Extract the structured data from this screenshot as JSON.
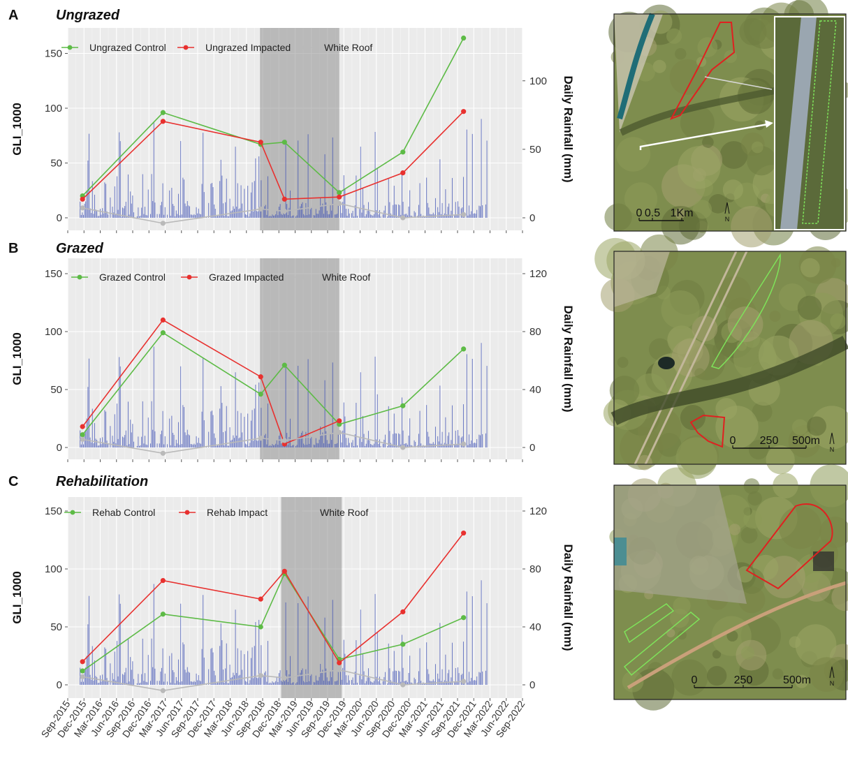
{
  "x_tick_labels": [
    "Sep-2015",
    "Dec-2015",
    "Mar-2016",
    "Jun-2016",
    "Sep-2016",
    "Dec-2016",
    "Mar-2017",
    "Jun-2017",
    "Sep-2017",
    "Dec-2017",
    "Mar-2018",
    "Jun-2018",
    "Sep-2018",
    "Dec-2018",
    "Mar-2019",
    "Jun-2019",
    "Sep-2019",
    "Dec-2019",
    "Mar-2020",
    "Jun-2020",
    "Sep-2020",
    "Dec-2020",
    "Mar-2021",
    "Jun-2021",
    "Sep-2021",
    "Dec-2021",
    "Mar-2022",
    "Jun-2022",
    "Sep-2022"
  ],
  "maps": [
    {
      "scale_labels": [
        "0",
        "0.5",
        "1Km"
      ],
      "north": "N"
    },
    {
      "scale_labels": [
        "0",
        "250",
        "500m"
      ],
      "north": "N"
    },
    {
      "scale_labels": [
        "0",
        "250",
        "500m"
      ],
      "north": "N"
    }
  ],
  "chart_data": [
    {
      "type": "line",
      "panel": "A",
      "title": "Ungrazed",
      "ylabel": "GLI_1000",
      "y2label": "Daily Rainfall (mm)",
      "ylim": [
        -5,
        165
      ],
      "yticks": [
        0,
        50,
        100,
        150
      ],
      "y2ticks": [
        0,
        50,
        100
      ],
      "y2_per_y": 0.8,
      "shaded": [
        "2018-09-01",
        "2019-12-01"
      ],
      "series": [
        {
          "name": "Ungrazed Control",
          "color": "#5dbb46",
          "x": [
            "2015-11-15",
            "2017-02-20",
            "2018-09-05",
            "2019-01-20",
            "2019-12-01",
            "2020-12-01",
            "2021-11-15"
          ],
          "y": [
            20,
            96,
            67,
            69,
            23,
            60,
            164
          ]
        },
        {
          "name": "Ungrazed Impacted",
          "color": "#e8312f",
          "x": [
            "2015-11-15",
            "2017-02-20",
            "2018-09-05",
            "2019-01-20",
            "2019-12-01",
            "2020-12-01",
            "2021-11-15"
          ],
          "y": [
            17,
            88,
            69,
            17,
            19,
            41,
            97
          ]
        },
        {
          "name": "White Roof",
          "color": "#b9b9b9",
          "x": [
            "2015-11-15",
            "2017-02-20",
            "2018-09-05",
            "2019-01-20",
            "2019-12-01",
            "2020-12-01",
            "2021-11-15"
          ],
          "y": [
            9,
            -5,
            8,
            6,
            13,
            0,
            3
          ]
        }
      ]
    },
    {
      "type": "line",
      "panel": "B",
      "title": "Grazed",
      "ylabel": "GLI_1000",
      "y2label": "Daily Rainfall (mm)",
      "ylim": [
        -5,
        155
      ],
      "yticks": [
        0,
        50,
        100,
        150
      ],
      "y2ticks": [
        0,
        40,
        80,
        120
      ],
      "y2_per_y": 0.8,
      "shaded": [
        "2018-09-01",
        "2019-12-01"
      ],
      "series": [
        {
          "name": "Grazed Control",
          "color": "#5dbb46",
          "x": [
            "2015-11-15",
            "2017-02-20",
            "2018-09-05",
            "2019-01-20",
            "2019-12-01",
            "2020-12-01",
            "2021-11-15"
          ],
          "y": [
            11,
            99,
            46,
            71,
            20,
            36,
            85
          ]
        },
        {
          "name": "Grazed Impacted",
          "color": "#e8312f",
          "x": [
            "2015-11-15",
            "2017-02-20",
            "2018-09-05",
            "2019-01-20",
            "2019-12-01"
          ],
          "y": [
            18,
            110,
            61,
            3,
            23
          ]
        },
        {
          "name": "White Roof",
          "color": "#b9b9b9",
          "x": [
            "2015-11-15",
            "2017-02-20",
            "2018-09-05",
            "2019-01-20",
            "2019-12-01",
            "2020-12-01",
            "2021-11-15"
          ],
          "y": [
            7,
            -5,
            8,
            6,
            13,
            0,
            3
          ]
        }
      ]
    },
    {
      "type": "line",
      "panel": "C",
      "title": "Rehabilitation",
      "ylabel": "GLI_1000",
      "y2label": "Daily Rainfall (mm)",
      "ylim": [
        -5,
        155
      ],
      "yticks": [
        0,
        50,
        100,
        150
      ],
      "y2ticks": [
        0,
        40,
        80,
        120
      ],
      "y2_per_y": 0.8,
      "shaded": [
        "2019-01-01",
        "2019-12-15"
      ],
      "series": [
        {
          "name": "Rehab Control",
          "color": "#5dbb46",
          "x": [
            "2015-11-15",
            "2017-02-20",
            "2018-09-05",
            "2019-01-20",
            "2019-12-01",
            "2020-12-01",
            "2021-11-15"
          ],
          "y": [
            12,
            61,
            50,
            96,
            22,
            35,
            58
          ]
        },
        {
          "name": "Rehab Impact",
          "color": "#e8312f",
          "x": [
            "2015-11-15",
            "2017-02-20",
            "2018-09-05",
            "2019-01-20",
            "2019-12-01",
            "2020-12-01",
            "2021-11-15"
          ],
          "y": [
            20,
            90,
            74,
            98,
            19,
            63,
            131
          ]
        },
        {
          "name": "White Roof",
          "color": "#b9b9b9",
          "x": [
            "2015-11-15",
            "2017-02-20",
            "2018-09-05",
            "2019-01-20",
            "2019-12-01",
            "2020-12-01",
            "2021-11-15"
          ],
          "y": [
            7,
            -5,
            8,
            6,
            13,
            0,
            3
          ]
        }
      ]
    }
  ]
}
